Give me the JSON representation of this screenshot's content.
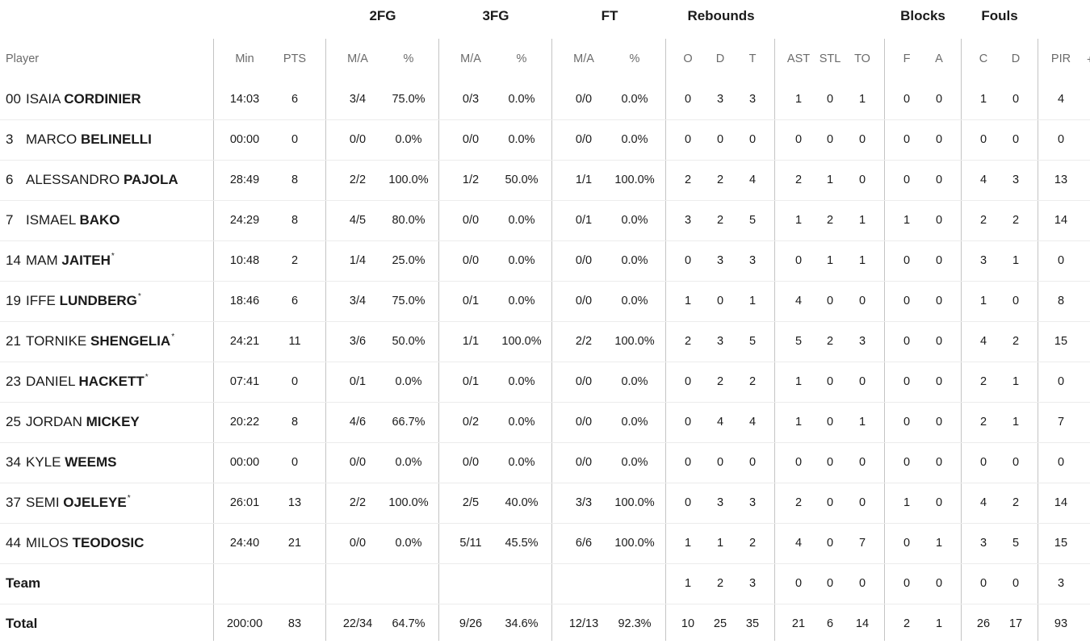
{
  "groups": [
    {
      "key": "fg2",
      "label": "2FG"
    },
    {
      "key": "fg3",
      "label": "3FG"
    },
    {
      "key": "ft",
      "label": "FT"
    },
    {
      "key": "reb",
      "label": "Rebounds"
    },
    {
      "key": "blk",
      "label": "Blocks"
    },
    {
      "key": "fouls",
      "label": "Fouls"
    }
  ],
  "columns": [
    "Player",
    "Min",
    "PTS",
    "M/A",
    "%",
    "M/A",
    "%",
    "M/A",
    "%",
    "O",
    "D",
    "T",
    "AST",
    "STL",
    "TO",
    "F",
    "A",
    "C",
    "D",
    "PIR"
  ],
  "more_columns_label": "+",
  "players": [
    {
      "num": "00",
      "first": "ISAIA",
      "last": "CORDINIER",
      "star": "",
      "stats": [
        "14:03",
        "6",
        "3/4",
        "75.0%",
        "0/3",
        "0.0%",
        "0/0",
        "0.0%",
        "0",
        "3",
        "3",
        "1",
        "0",
        "1",
        "0",
        "0",
        "1",
        "0",
        "4"
      ]
    },
    {
      "num": "3",
      "first": "MARCO",
      "last": "BELINELLI",
      "star": "",
      "stats": [
        "00:00",
        "0",
        "0/0",
        "0.0%",
        "0/0",
        "0.0%",
        "0/0",
        "0.0%",
        "0",
        "0",
        "0",
        "0",
        "0",
        "0",
        "0",
        "0",
        "0",
        "0",
        "0"
      ]
    },
    {
      "num": "6",
      "first": "ALESSANDRO",
      "last": "PAJOLA",
      "star": "",
      "stats": [
        "28:49",
        "8",
        "2/2",
        "100.0%",
        "1/2",
        "50.0%",
        "1/1",
        "100.0%",
        "2",
        "2",
        "4",
        "2",
        "1",
        "0",
        "0",
        "0",
        "4",
        "3",
        "13"
      ]
    },
    {
      "num": "7",
      "first": "ISMAEL",
      "last": "BAKO",
      "star": "",
      "stats": [
        "24:29",
        "8",
        "4/5",
        "80.0%",
        "0/0",
        "0.0%",
        "0/1",
        "0.0%",
        "3",
        "2",
        "5",
        "1",
        "2",
        "1",
        "1",
        "0",
        "2",
        "2",
        "14"
      ]
    },
    {
      "num": "14",
      "first": "MAM",
      "last": "JAITEH",
      "star": "*",
      "stats": [
        "10:48",
        "2",
        "1/4",
        "25.0%",
        "0/0",
        "0.0%",
        "0/0",
        "0.0%",
        "0",
        "3",
        "3",
        "0",
        "1",
        "1",
        "0",
        "0",
        "3",
        "1",
        "0"
      ]
    },
    {
      "num": "19",
      "first": "IFFE",
      "last": "LUNDBERG",
      "star": "*",
      "stats": [
        "18:46",
        "6",
        "3/4",
        "75.0%",
        "0/1",
        "0.0%",
        "0/0",
        "0.0%",
        "1",
        "0",
        "1",
        "4",
        "0",
        "0",
        "0",
        "0",
        "1",
        "0",
        "8"
      ]
    },
    {
      "num": "21",
      "first": "TORNIKE",
      "last": "SHENGELIA",
      "star": "*",
      "stats": [
        "24:21",
        "11",
        "3/6",
        "50.0%",
        "1/1",
        "100.0%",
        "2/2",
        "100.0%",
        "2",
        "3",
        "5",
        "5",
        "2",
        "3",
        "0",
        "0",
        "4",
        "2",
        "15"
      ]
    },
    {
      "num": "23",
      "first": "DANIEL",
      "last": "HACKETT",
      "star": "*",
      "stats": [
        "07:41",
        "0",
        "0/1",
        "0.0%",
        "0/1",
        "0.0%",
        "0/0",
        "0.0%",
        "0",
        "2",
        "2",
        "1",
        "0",
        "0",
        "0",
        "0",
        "2",
        "1",
        "0"
      ]
    },
    {
      "num": "25",
      "first": "JORDAN",
      "last": "MICKEY",
      "star": "",
      "stats": [
        "20:22",
        "8",
        "4/6",
        "66.7%",
        "0/2",
        "0.0%",
        "0/0",
        "0.0%",
        "0",
        "4",
        "4",
        "1",
        "0",
        "1",
        "0",
        "0",
        "2",
        "1",
        "7"
      ]
    },
    {
      "num": "34",
      "first": "KYLE",
      "last": "WEEMS",
      "star": "",
      "stats": [
        "00:00",
        "0",
        "0/0",
        "0.0%",
        "0/0",
        "0.0%",
        "0/0",
        "0.0%",
        "0",
        "0",
        "0",
        "0",
        "0",
        "0",
        "0",
        "0",
        "0",
        "0",
        "0"
      ]
    },
    {
      "num": "37",
      "first": "SEMI",
      "last": "OJELEYE",
      "star": "*",
      "stats": [
        "26:01",
        "13",
        "2/2",
        "100.0%",
        "2/5",
        "40.0%",
        "3/3",
        "100.0%",
        "0",
        "3",
        "3",
        "2",
        "0",
        "0",
        "1",
        "0",
        "4",
        "2",
        "14"
      ]
    },
    {
      "num": "44",
      "first": "MILOS",
      "last": "TEODOSIC",
      "star": "",
      "stats": [
        "24:40",
        "21",
        "0/0",
        "0.0%",
        "5/11",
        "45.5%",
        "6/6",
        "100.0%",
        "1",
        "1",
        "2",
        "4",
        "0",
        "7",
        "0",
        "1",
        "3",
        "5",
        "15"
      ]
    }
  ],
  "team": {
    "label": "Team",
    "stats": [
      "",
      "",
      "",
      "",
      "",
      "",
      "",
      "",
      "1",
      "2",
      "3",
      "0",
      "0",
      "0",
      "0",
      "0",
      "0",
      "0",
      "3"
    ]
  },
  "total": {
    "label": "Total",
    "stats": [
      "200:00",
      "83",
      "22/34",
      "64.7%",
      "9/26",
      "34.6%",
      "12/13",
      "92.3%",
      "10",
      "25",
      "35",
      "21",
      "6",
      "14",
      "2",
      "1",
      "26",
      "17",
      "93"
    ]
  }
}
